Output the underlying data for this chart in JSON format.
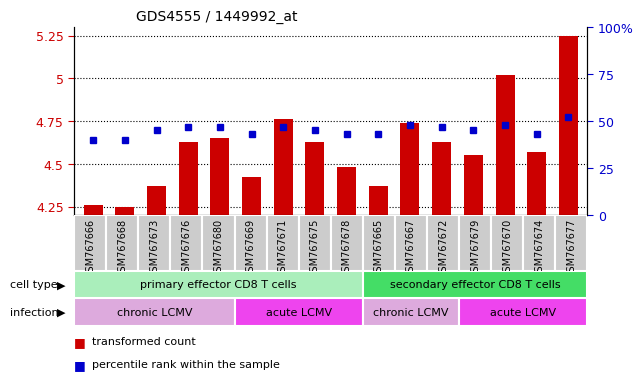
{
  "title": "GDS4555 / 1449992_at",
  "samples": [
    "GSM767666",
    "GSM767668",
    "GSM767673",
    "GSM767676",
    "GSM767680",
    "GSM767669",
    "GSM767671",
    "GSM767675",
    "GSM767678",
    "GSM767665",
    "GSM767667",
    "GSM767672",
    "GSM767679",
    "GSM767670",
    "GSM767674",
    "GSM767677"
  ],
  "transformed_count": [
    4.26,
    4.25,
    4.37,
    4.63,
    4.65,
    4.42,
    4.76,
    4.63,
    4.48,
    4.37,
    4.74,
    4.63,
    4.55,
    5.02,
    4.57,
    5.25
  ],
  "percentile_rank": [
    40,
    40,
    45,
    47,
    47,
    43,
    47,
    45,
    43,
    43,
    48,
    47,
    45,
    48,
    43,
    52
  ],
  "ylim_left": [
    4.2,
    5.3
  ],
  "ylim_right": [
    0,
    100
  ],
  "yticks_left": [
    4.25,
    4.5,
    4.75,
    5.0,
    5.25
  ],
  "yticks_right": [
    0,
    25,
    50,
    75,
    100
  ],
  "ytick_labels_left": [
    "4.25",
    "4.5",
    "4.75",
    "5",
    "5.25"
  ],
  "ytick_labels_right": [
    "0",
    "25",
    "50",
    "75",
    "100%"
  ],
  "bar_color": "#cc0000",
  "dot_color": "#0000cc",
  "cell_type_groups": [
    {
      "label": "primary effector CD8 T cells",
      "start": 0,
      "end": 8,
      "color": "#aaeebb"
    },
    {
      "label": "secondary effector CD8 T cells",
      "start": 9,
      "end": 15,
      "color": "#44dd66"
    }
  ],
  "infection_groups": [
    {
      "label": "chronic LCMV",
      "start": 0,
      "end": 4,
      "color": "#ddaadd"
    },
    {
      "label": "acute LCMV",
      "start": 5,
      "end": 8,
      "color": "#ee44ee"
    },
    {
      "label": "chronic LCMV",
      "start": 9,
      "end": 11,
      "color": "#ddaadd"
    },
    {
      "label": "acute LCMV",
      "start": 12,
      "end": 15,
      "color": "#ee44ee"
    }
  ],
  "legend_items": [
    {
      "label": "transformed count",
      "color": "#cc0000"
    },
    {
      "label": "percentile rank within the sample",
      "color": "#0000cc"
    }
  ],
  "cell_type_label": "cell type",
  "infection_label": "infection",
  "xlabel_bg": "#cccccc",
  "fig_bg": "#ffffff"
}
